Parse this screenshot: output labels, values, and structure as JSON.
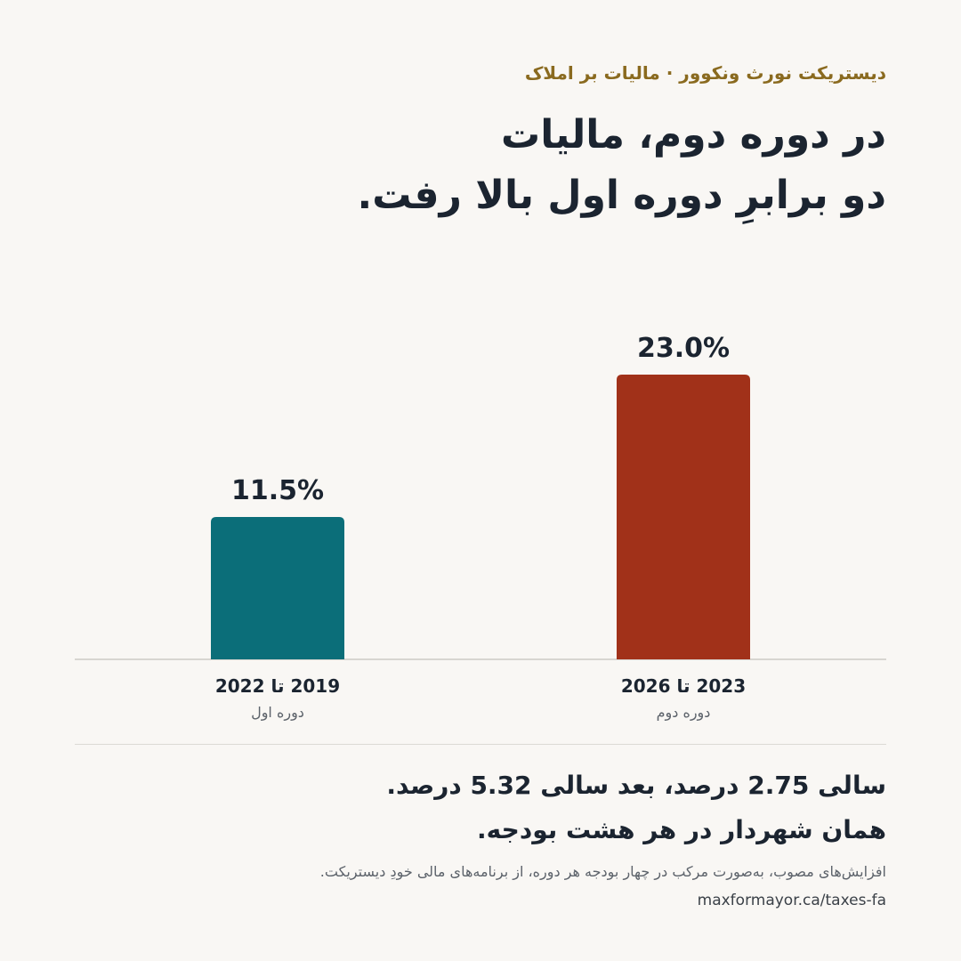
{
  "header": {
    "kicker": "دیستریکت نورث ونکوور · مالیات بر املاک",
    "title_line1": "در دوره دوم، مالیات",
    "title_line2": "دو برابرِ دوره اول بالا رفت."
  },
  "chart_data": {
    "type": "bar",
    "categories": [
      "2019 تا 2022",
      "2023 تا 2026"
    ],
    "category_sublabels": [
      "دوره اول",
      "دوره دوم"
    ],
    "values": [
      11.5,
      23.0
    ],
    "value_labels": [
      "11.5%",
      "23.0%"
    ],
    "bar_colors": [
      "#0b6e79",
      "#a13119"
    ],
    "ylim": [
      0,
      25
    ],
    "grid": false,
    "legend": "none"
  },
  "summary": {
    "line1": "سالی 2.75 درصد، بعد سالی 5.32 درصد.",
    "line2": "همان شهردار در هر هشت بودجه."
  },
  "footnote": "افزایش‌های مصوب، به‌صورت مرکب در چهار بودجه هر دوره، از برنامه‌های مالی خودِ دیستریکت.",
  "url": "maxformayor.ca/taxes-fa",
  "colors": {
    "background": "#f9f7f4",
    "kicker": "#8a6a1f",
    "text": "#1b2430",
    "bar_first": "#0b6e79",
    "bar_second": "#a13119"
  }
}
